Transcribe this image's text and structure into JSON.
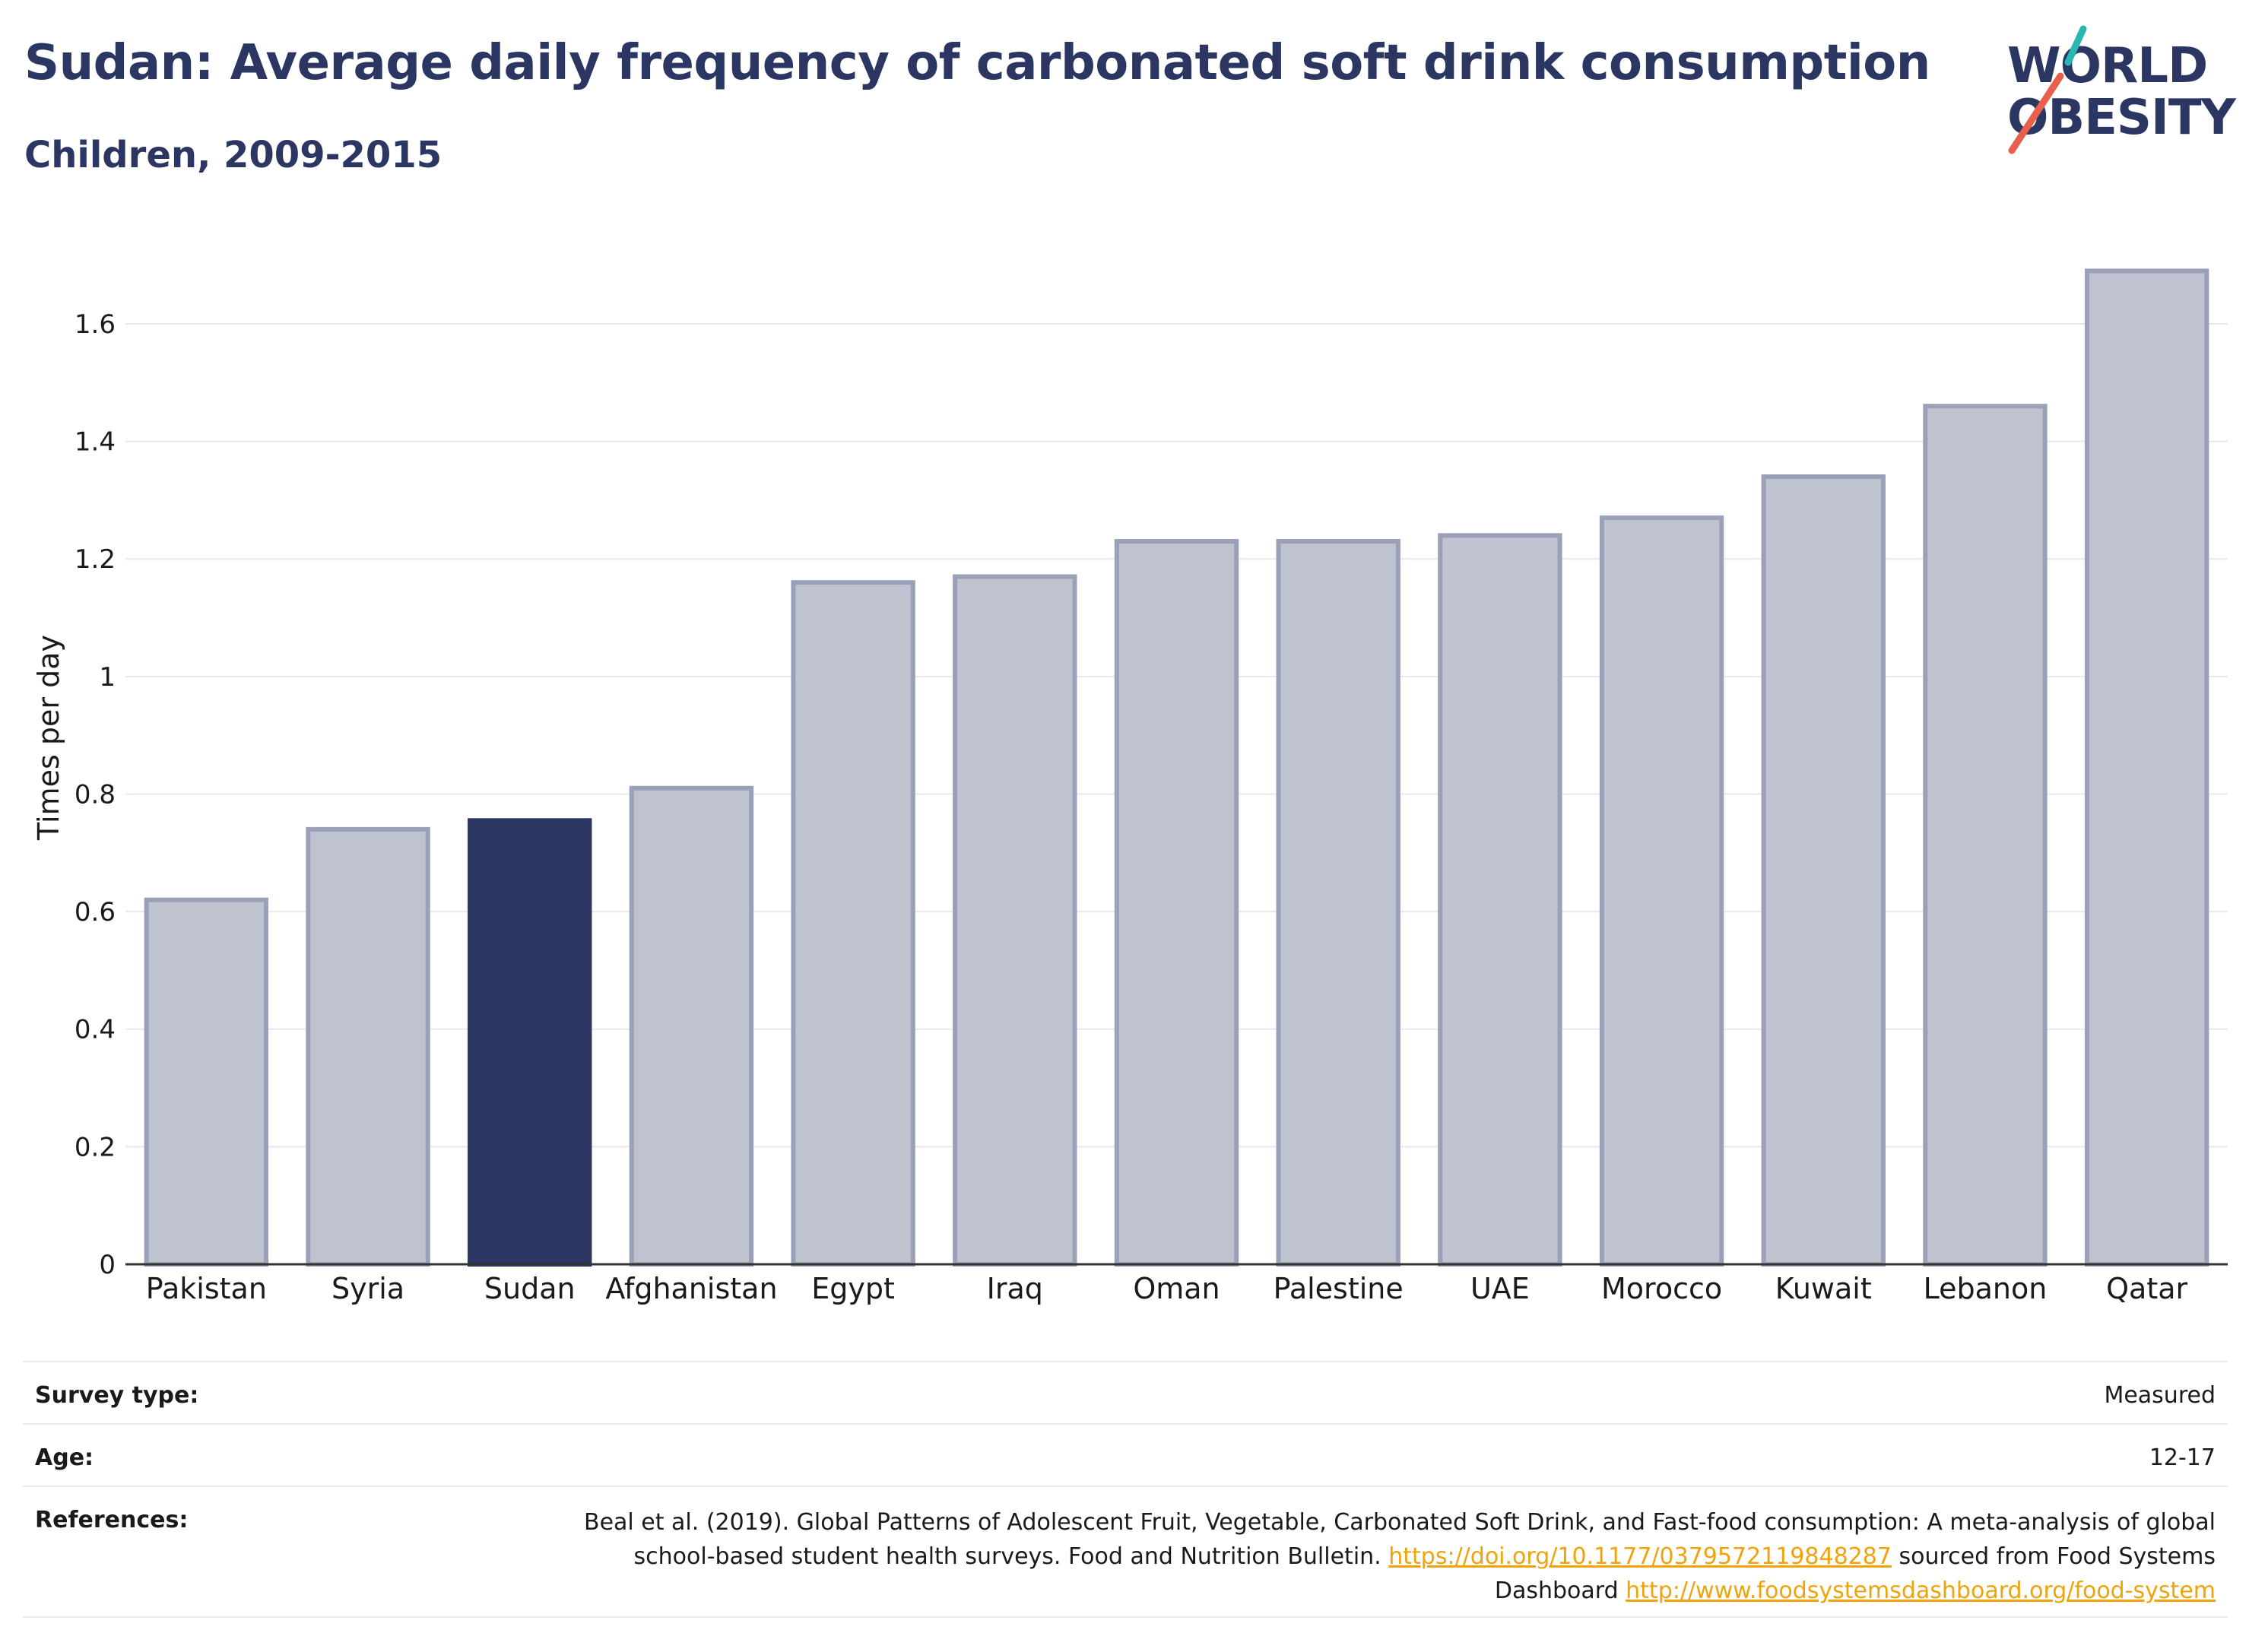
{
  "header": {
    "title": "Sudan: Average daily frequency of carbonated soft drink consumption",
    "subtitle": "Children, 2009-2015"
  },
  "logo": {
    "line1": "WORLD",
    "line2": "OBESITY",
    "colors": {
      "text": "#2b3663",
      "slash_teal": "#2ab7b0",
      "slash_coral": "#e8604c"
    }
  },
  "chart_data": {
    "type": "bar",
    "categories": [
      "Pakistan",
      "Syria",
      "Sudan",
      "Afghanistan",
      "Egypt",
      "Iraq",
      "Oman",
      "Palestine",
      "UAE",
      "Morocco",
      "Kuwait",
      "Lebanon",
      "Qatar"
    ],
    "values": [
      0.62,
      0.74,
      0.755,
      0.81,
      1.16,
      1.17,
      1.23,
      1.23,
      1.24,
      1.27,
      1.34,
      1.46,
      1.69
    ],
    "highlight": "Sudan",
    "ylabel": "Times per day",
    "xlabel": "",
    "ylim": [
      0,
      1.75
    ],
    "yticks": [
      0,
      0.2,
      0.4,
      0.6,
      0.8,
      1,
      1.2,
      1.4,
      1.6
    ],
    "ytick_labels": [
      "0",
      "0.2",
      "0.4",
      "0.6",
      "0.8",
      "1",
      "1.2",
      "1.4",
      "1.6"
    ],
    "grid": true,
    "colors": {
      "bar": "#bfc2cf",
      "bar_border": "#9aa0b8",
      "highlight": "#2b3663",
      "grid": "#e6e8ee",
      "axis": "#333333"
    }
  },
  "info": {
    "survey_type": {
      "label": "Survey type:",
      "value": "Measured"
    },
    "age": {
      "label": "Age:",
      "value": "12-17"
    },
    "references": {
      "label": "References:",
      "text_1": "Beal et al. (2019). Global Patterns of Adolescent Fruit, Vegetable, Carbonated Soft Drink, and Fast-food consumption: A meta-analysis of global school-based student health surveys. Food and Nutrition Bulletin. ",
      "link_1": "https://doi.org/10.1177/0379572119848287",
      "text_2": " sourced from Food Systems Dashboard ",
      "link_2": "http://www.foodsystemsdashboard.org/food-system",
      "link_color": "#f0a30a"
    }
  }
}
